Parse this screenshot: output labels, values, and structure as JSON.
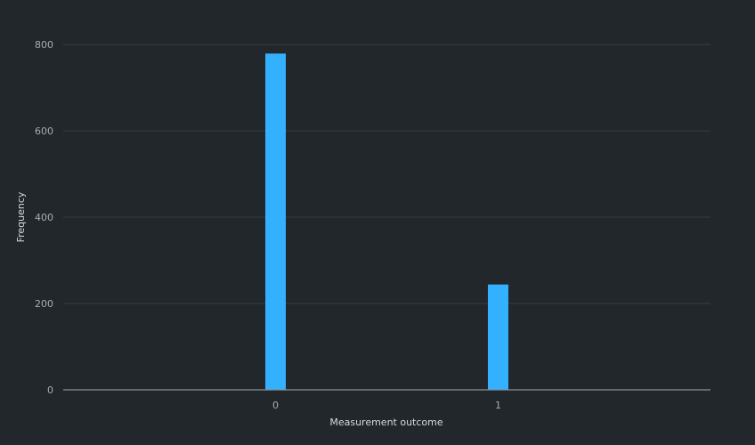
{
  "chart_data": {
    "type": "bar",
    "title": "",
    "xlabel": "Measurement outcome",
    "ylabel": "Frequency",
    "categories": [
      "0",
      "1"
    ],
    "values": [
      779,
      244
    ],
    "ylim": [
      0,
      800
    ],
    "yticks": [
      0,
      200,
      400,
      600,
      800
    ],
    "grid": true,
    "colors": {
      "bar": "#33b1ff",
      "background": "#22272b"
    }
  }
}
